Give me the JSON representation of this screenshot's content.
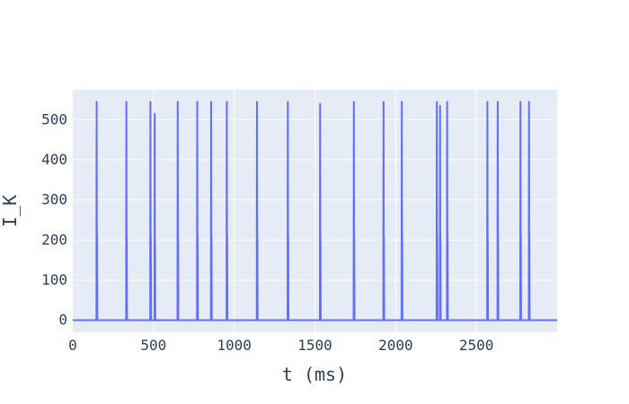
{
  "chart_data": {
    "type": "line",
    "title": "",
    "xlabel": "t (ms)",
    "ylabel": "I_K",
    "xlim": [
      0,
      3000
    ],
    "ylim": [
      -30,
      575
    ],
    "xticks": [
      0,
      500,
      1000,
      1500,
      2000,
      2500
    ],
    "yticks": [
      0,
      100,
      200,
      300,
      400,
      500
    ],
    "grid": true,
    "legend": "none",
    "baseline": 0,
    "colors": {
      "plot_bg": "#e5ecf6",
      "grid": "#ffffff",
      "line": "#636efa",
      "text": "#2a3f5f"
    },
    "series": [
      {
        "spikes": [
          {
            "t": 148,
            "peak": 545
          },
          {
            "t": 332,
            "peak": 545
          },
          {
            "t": 481,
            "peak": 545
          },
          {
            "t": 507,
            "peak": 515
          },
          {
            "t": 650,
            "peak": 545
          },
          {
            "t": 771,
            "peak": 545
          },
          {
            "t": 857,
            "peak": 545
          },
          {
            "t": 954,
            "peak": 545
          },
          {
            "t": 1141,
            "peak": 545
          },
          {
            "t": 1332,
            "peak": 545
          },
          {
            "t": 1532,
            "peak": 540
          },
          {
            "t": 1741,
            "peak": 545
          },
          {
            "t": 1925,
            "peak": 545
          },
          {
            "t": 2038,
            "peak": 545
          },
          {
            "t": 2255,
            "peak": 545
          },
          {
            "t": 2275,
            "peak": 535
          },
          {
            "t": 2319,
            "peak": 545
          },
          {
            "t": 2568,
            "peak": 545
          },
          {
            "t": 2632,
            "peak": 545
          },
          {
            "t": 2773,
            "peak": 545
          },
          {
            "t": 2826,
            "peak": 545
          }
        ]
      }
    ]
  }
}
